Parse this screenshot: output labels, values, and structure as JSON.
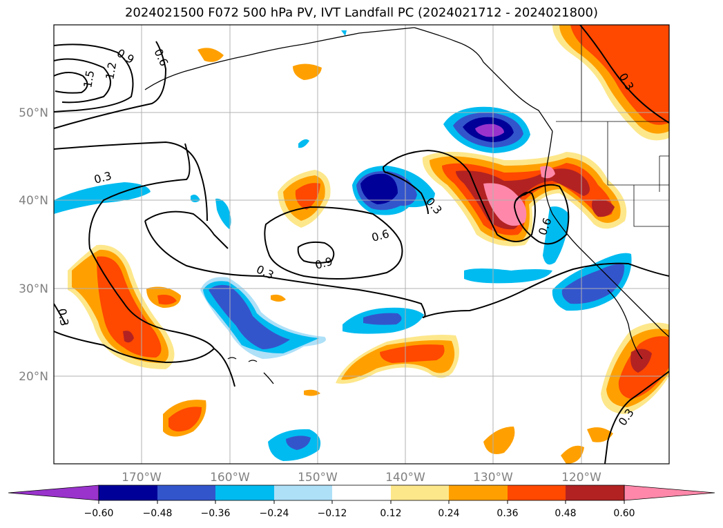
{
  "title": "2024021500 F072 500 hPa PV, IVT Landfall PC (2024021712 - 2024021800)",
  "map": {
    "lat_labels": [
      "50°N",
      "40°N",
      "30°N",
      "20°N"
    ],
    "lon_labels": [
      "170°W",
      "160°W",
      "150°W",
      "140°W",
      "130°W",
      "120°W"
    ]
  },
  "contour_labels": [
    "0.9",
    "0.6",
    "1.5",
    "1.2",
    "0.3",
    "0.3",
    "0.6",
    "0.9",
    "0.3",
    "0.3",
    "0.6",
    "0.3",
    "0.3",
    "0.3"
  ],
  "colorbar": {
    "ticks": [
      "−0.60",
      "−0.48",
      "−0.36",
      "−0.24",
      "−0.12",
      "0.12",
      "0.24",
      "0.36",
      "0.48",
      "0.60"
    ],
    "colors": [
      "#9933cc",
      "#000099",
      "#3355cc",
      "#00bbf0",
      "#aee0f8",
      "#ffffff",
      "#fde78b",
      "#ffa000",
      "#ff4800",
      "#b22222",
      "#ff88aa"
    ]
  }
}
